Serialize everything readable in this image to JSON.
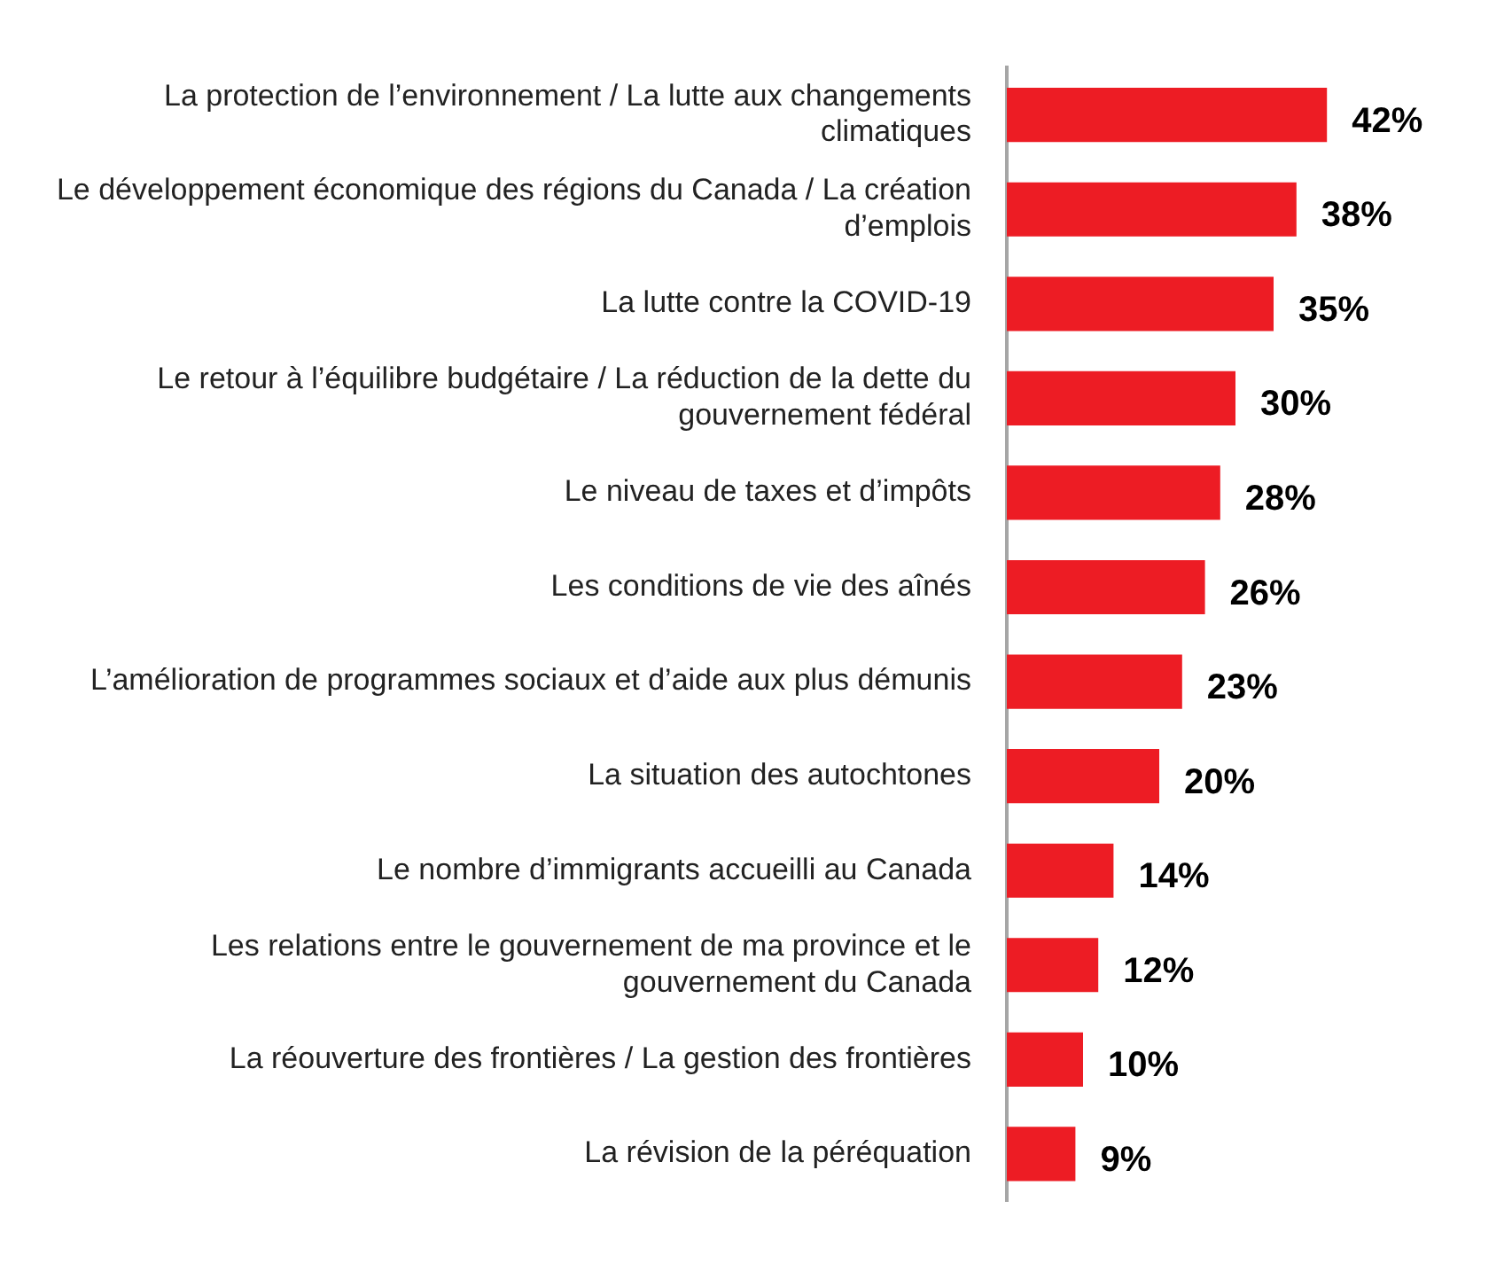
{
  "chart_data": {
    "type": "bar",
    "orientation": "horizontal",
    "categories": [
      "La protection de l’environnement / La lutte aux changements climatiques",
      "Le développement économique des régions du Canada / La création d’emplois",
      "La lutte contre la COVID-19",
      "Le retour à l’équilibre budgétaire / La réduction de la dette du gouvernement fédéral",
      "Le niveau de taxes et d’impôts",
      "Les conditions de vie des aînés",
      "L’amélioration de programmes sociaux et d’aide aux plus démunis",
      "La situation des autochtones",
      "Le nombre d’immigrants accueilli au Canada",
      "Les relations entre le gouvernement de ma province et le gouvernement du Canada",
      "La réouverture des frontières / La gestion des frontières",
      "La révision de la péréquation"
    ],
    "values": [
      42,
      38,
      35,
      30,
      28,
      26,
      23,
      20,
      14,
      12,
      10,
      9
    ],
    "value_labels": [
      "42%",
      "38%",
      "35%",
      "30%",
      "28%",
      "26%",
      "23%",
      "20%",
      "14%",
      "12%",
      "10%",
      "9%"
    ],
    "color": "#ed1c24",
    "tick_labels": "y"
  }
}
